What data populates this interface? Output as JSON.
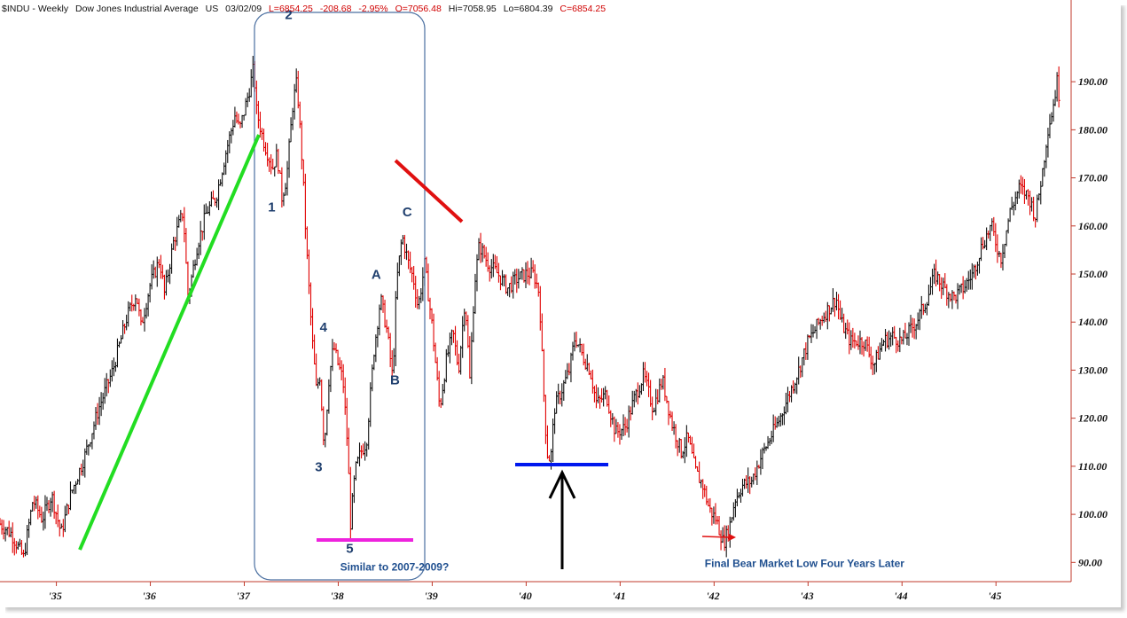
{
  "header": {
    "symbol": "$INDU - Weekly",
    "name": "Dow Jones Industrial Average",
    "exchange": "US",
    "date": "03/02/09",
    "low": "L=6854.25",
    "change": "-208.68",
    "change_pct": "-2.95%",
    "open": "O=7056.48",
    "high": "Hi=7058.95",
    "lo": "Lo=6804.39",
    "close": "C=6854.25"
  },
  "colors": {
    "up_bar": "#111111",
    "down_bar": "#e00000",
    "header_black": "#111111",
    "header_red": "#d00000",
    "green_line": "#22dd22",
    "red_line": "#e01010",
    "magenta_line": "#ee22dd",
    "blue_line": "#0018ee",
    "box_border": "#4a6fa0"
  },
  "chart_data": {
    "type": "ohlc-bar",
    "title": "$INDU - Weekly Dow Jones Industrial Average",
    "x_tick_labels": [
      "'35",
      "'36",
      "'37",
      "'38",
      "'39",
      "'40",
      "'41",
      "'42",
      "'43",
      "'44",
      "'45"
    ],
    "y_tick_labels": [
      "90.00",
      "100.00",
      "110.00",
      "120.00",
      "130.00",
      "140.00",
      "150.00",
      "160.00",
      "170.00",
      "180.00",
      "190.00"
    ],
    "y_ticks": [
      90,
      100,
      110,
      120,
      130,
      140,
      150,
      160,
      170,
      180,
      190
    ],
    "x_ticks": [
      1935.2,
      1936.2,
      1937.2,
      1938.2,
      1939.2,
      1940.2,
      1941.2,
      1942.2,
      1943.2,
      1944.2,
      1945.2
    ],
    "ylim": [
      86,
      207
    ],
    "xlim": [
      1934.6,
      1946.0
    ],
    "price_path": [
      [
        1934.6,
        98
      ],
      [
        1934.72,
        96
      ],
      [
        1934.85,
        91
      ],
      [
        1934.95,
        103
      ],
      [
        1935.05,
        99
      ],
      [
        1935.15,
        104
      ],
      [
        1935.25,
        96
      ],
      [
        1935.35,
        104
      ],
      [
        1935.5,
        112
      ],
      [
        1935.65,
        122
      ],
      [
        1935.8,
        130
      ],
      [
        1935.95,
        141
      ],
      [
        1936.05,
        146
      ],
      [
        1936.1,
        139
      ],
      [
        1936.2,
        148
      ],
      [
        1936.3,
        153
      ],
      [
        1936.35,
        146
      ],
      [
        1936.45,
        157
      ],
      [
        1936.55,
        163
      ],
      [
        1936.6,
        145
      ],
      [
        1936.7,
        156
      ],
      [
        1936.8,
        163
      ],
      [
        1936.9,
        166
      ],
      [
        1937.0,
        175
      ],
      [
        1937.1,
        183
      ],
      [
        1937.15,
        180
      ],
      [
        1937.25,
        188
      ],
      [
        1937.3,
        193
      ],
      [
        1937.33,
        184
      ],
      [
        1937.4,
        178
      ],
      [
        1937.5,
        172
      ],
      [
        1937.55,
        175
      ],
      [
        1937.6,
        166
      ],
      [
        1937.65,
        170
      ],
      [
        1937.72,
        186
      ],
      [
        1937.76,
        190
      ],
      [
        1937.82,
        172
      ],
      [
        1937.86,
        156
      ],
      [
        1937.92,
        137
      ],
      [
        1937.97,
        125
      ],
      [
        1938.0,
        130
      ],
      [
        1938.05,
        114
      ],
      [
        1938.1,
        128
      ],
      [
        1938.15,
        135
      ],
      [
        1938.2,
        131
      ],
      [
        1938.25,
        128
      ],
      [
        1938.3,
        114
      ],
      [
        1938.33,
        98
      ],
      [
        1938.38,
        109
      ],
      [
        1938.44,
        113
      ],
      [
        1938.5,
        115
      ],
      [
        1938.58,
        134
      ],
      [
        1938.65,
        145
      ],
      [
        1938.72,
        138
      ],
      [
        1938.78,
        128
      ],
      [
        1938.82,
        148
      ],
      [
        1938.88,
        158
      ],
      [
        1938.95,
        152
      ],
      [
        1939.0,
        149
      ],
      [
        1939.05,
        143
      ],
      [
        1939.12,
        152
      ],
      [
        1939.2,
        139
      ],
      [
        1939.28,
        122
      ],
      [
        1939.35,
        132
      ],
      [
        1939.42,
        138
      ],
      [
        1939.48,
        130
      ],
      [
        1939.55,
        145
      ],
      [
        1939.6,
        128
      ],
      [
        1939.65,
        148
      ],
      [
        1939.7,
        156
      ],
      [
        1939.8,
        152
      ],
      [
        1939.9,
        150
      ],
      [
        1940.0,
        147
      ],
      [
        1940.1,
        149
      ],
      [
        1940.2,
        150
      ],
      [
        1940.28,
        150
      ],
      [
        1940.34,
        146
      ],
      [
        1940.38,
        128
      ],
      [
        1940.42,
        113
      ],
      [
        1940.46,
        111
      ],
      [
        1940.5,
        122
      ],
      [
        1940.58,
        126
      ],
      [
        1940.66,
        130
      ],
      [
        1940.72,
        137
      ],
      [
        1940.8,
        133
      ],
      [
        1940.88,
        130
      ],
      [
        1940.95,
        123
      ],
      [
        1941.05,
        125
      ],
      [
        1941.15,
        117
      ],
      [
        1941.25,
        118
      ],
      [
        1941.35,
        124
      ],
      [
        1941.45,
        129
      ],
      [
        1941.55,
        122
      ],
      [
        1941.65,
        128
      ],
      [
        1941.75,
        119
      ],
      [
        1941.85,
        113
      ],
      [
        1941.92,
        116
      ],
      [
        1942.0,
        109
      ],
      [
        1942.08,
        106
      ],
      [
        1942.15,
        101
      ],
      [
        1942.22,
        99
      ],
      [
        1942.3,
        94
      ],
      [
        1942.36,
        97
      ],
      [
        1942.42,
        103
      ],
      [
        1942.5,
        106
      ],
      [
        1942.6,
        107
      ],
      [
        1942.7,
        112
      ],
      [
        1942.8,
        116
      ],
      [
        1942.9,
        120
      ],
      [
        1943.0,
        125
      ],
      [
        1943.1,
        130
      ],
      [
        1943.2,
        136
      ],
      [
        1943.35,
        141
      ],
      [
        1943.5,
        145
      ],
      [
        1943.55,
        140
      ],
      [
        1943.65,
        136
      ],
      [
        1943.8,
        136
      ],
      [
        1943.9,
        131
      ],
      [
        1944.0,
        136
      ],
      [
        1944.1,
        137
      ],
      [
        1944.2,
        136
      ],
      [
        1944.35,
        140
      ],
      [
        1944.45,
        144
      ],
      [
        1944.55,
        150
      ],
      [
        1944.65,
        147
      ],
      [
        1944.75,
        145
      ],
      [
        1944.85,
        147
      ],
      [
        1944.95,
        150
      ],
      [
        1945.05,
        156
      ],
      [
        1945.15,
        160
      ],
      [
        1945.25,
        153
      ],
      [
        1945.35,
        163
      ],
      [
        1945.45,
        168
      ],
      [
        1945.55,
        166
      ],
      [
        1945.62,
        162
      ],
      [
        1945.7,
        172
      ],
      [
        1945.75,
        180
      ],
      [
        1945.8,
        184
      ],
      [
        1945.85,
        190
      ],
      [
        1945.88,
        186
      ]
    ],
    "wave_labels": [
      {
        "text": "1",
        "x": 1937.5,
        "y": 163
      },
      {
        "text": "2",
        "x": 1937.68,
        "y": 203
      },
      {
        "text": "3",
        "x": 1938.0,
        "y": 109
      },
      {
        "text": "4",
        "x": 1938.05,
        "y": 138
      },
      {
        "text": "5",
        "x": 1938.33,
        "y": 92
      },
      {
        "text": "A",
        "x": 1938.6,
        "y": 149
      },
      {
        "text": "B",
        "x": 1938.8,
        "y": 127
      },
      {
        "text": "C",
        "x": 1938.93,
        "y": 162
      }
    ],
    "annotations": [
      {
        "text": "Similar to 2007-2009?",
        "x": 1938.22,
        "y": 88.3
      },
      {
        "text": "Final Bear Market Low Four Years Later",
        "x": 1942.1,
        "y": 89
      }
    ],
    "grid": false,
    "legend": "none"
  }
}
